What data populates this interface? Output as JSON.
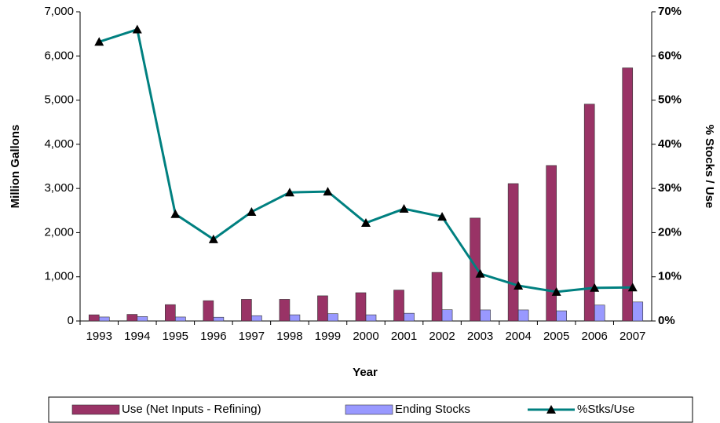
{
  "chart_data": {
    "type": "bar_line",
    "x_label": "Year",
    "y_label": "Million Gallons",
    "y2_label": "% Stocks / Use",
    "categories": [
      "1993",
      "1994",
      "1995",
      "1996",
      "1997",
      "1998",
      "1999",
      "2000",
      "2001",
      "2002",
      "2003",
      "2004",
      "2005",
      "2006",
      "2007"
    ],
    "series": [
      {
        "name": "Use (Net Inputs - Refining)",
        "color": "#993366",
        "type": "bar",
        "values": [
          140,
          150,
          370,
          460,
          490,
          490,
          570,
          640,
          700,
          1100,
          2330,
          3110,
          3520,
          4910,
          5730
        ]
      },
      {
        "name": "Ending Stocks",
        "color": "#9999ff",
        "type": "bar",
        "values": [
          90,
          100,
          90,
          85,
          120,
          140,
          165,
          140,
          175,
          255,
          250,
          250,
          230,
          360,
          430
        ]
      },
      {
        "name": "%Stks/Use",
        "color": "#008080",
        "type": "line",
        "axis": "y2",
        "values": [
          63.2,
          66,
          24.2,
          18.5,
          24.7,
          29.1,
          29.3,
          22.2,
          25.4,
          23.6,
          10.7,
          8,
          6.6,
          7.5,
          7.6
        ]
      }
    ],
    "ylim": [
      0,
      7000
    ],
    "yticks": [
      0,
      {
        "value": 1000,
        "label": "1,000"
      },
      {
        "value": 2000,
        "label": "2,000"
      },
      {
        "value": 3000,
        "label": "3,000"
      },
      {
        "value": 4000,
        "label": "4,000"
      },
      {
        "value": 5000,
        "label": "5,000"
      },
      {
        "value": 6000,
        "label": "6,000"
      },
      {
        "value": 7000,
        "label": "7,000"
      }
    ],
    "y2lim": [
      0,
      70
    ],
    "y2ticks": [
      {
        "value": 0,
        "label": "0%"
      },
      {
        "value": 10,
        "label": "10%"
      },
      {
        "value": 20,
        "label": "20%"
      },
      {
        "value": 30,
        "label": "30%"
      },
      {
        "value": 40,
        "label": "40%"
      },
      {
        "value": 50,
        "label": "50%"
      },
      {
        "value": 60,
        "label": "60%"
      },
      {
        "value": 70,
        "label": "70%"
      }
    ],
    "legend": "bottom"
  }
}
